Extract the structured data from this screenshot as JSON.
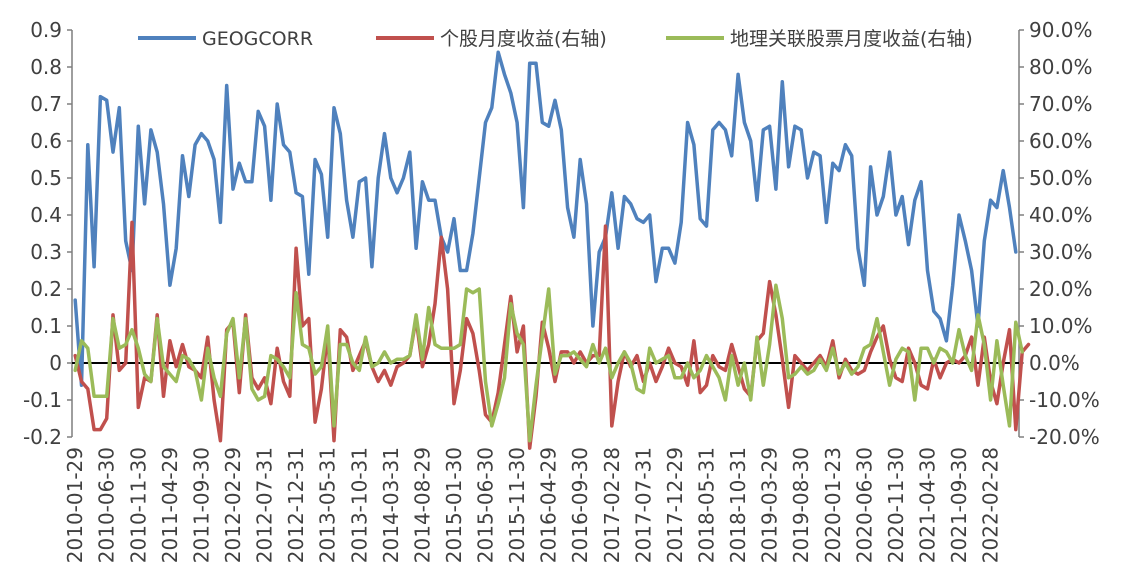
{
  "chart_data": {
    "type": "line",
    "title": "",
    "legend": {
      "placement": "top",
      "entries": [
        "GEOGCORR",
        "个股月度收益(右轴)",
        "地理关联股票月度收益(右轴)"
      ]
    },
    "x_tick_labels": [
      "2010-01-29",
      "2010-06-30",
      "2010-11-30",
      "2011-04-29",
      "2011-09-30",
      "2012-02-29",
      "2012-07-31",
      "2012-12-31",
      "2013-05-31",
      "2013-10-31",
      "2014-03-31",
      "2014-08-29",
      "2015-01-30",
      "2015-06-30",
      "2015-11-30",
      "2016-04-29",
      "2016-09-30",
      "2017-02-28",
      "2017-07-31",
      "2017-12-29",
      "2018-05-31",
      "2018-10-31",
      "2019-03-29",
      "2019-08-30",
      "2020-01-23",
      "2020-06-30",
      "2020-11-30",
      "2021-04-30",
      "2021-09-30",
      "2022-02-28"
    ],
    "x_start": "2010-01",
    "x_end": "2022-06",
    "y_left": {
      "ticks": [
        "0.9",
        "0.8",
        "0.7",
        "0.6",
        "0.5",
        "0.4",
        "0.3",
        "0.2",
        "0.1",
        "0",
        "-0.1",
        "-0.2"
      ],
      "range": [
        -0.2,
        0.9
      ]
    },
    "y_right": {
      "ticks": [
        "90.0%",
        "80.0%",
        "70.0%",
        "60.0%",
        "50.0%",
        "40.0%",
        "30.0%",
        "20.0%",
        "10.0%",
        "0.0%",
        "-10.0%",
        "-20.0%"
      ],
      "range": [
        -0.2,
        0.9
      ]
    },
    "series": [
      {
        "name": "GEOGCORR",
        "axis": "left",
        "color": "#4f81bd",
        "values": [
          0.17,
          -0.06,
          0.59,
          0.26,
          0.72,
          0.71,
          0.57,
          0.69,
          0.33,
          0.25,
          0.64,
          0.43,
          0.63,
          0.57,
          0.43,
          0.21,
          0.31,
          0.56,
          0.45,
          0.59,
          0.62,
          0.6,
          0.55,
          0.38,
          0.75,
          0.47,
          0.54,
          0.49,
          0.49,
          0.68,
          0.64,
          0.44,
          0.7,
          0.59,
          0.57,
          0.46,
          0.45,
          0.24,
          0.55,
          0.51,
          0.34,
          0.69,
          0.62,
          0.44,
          0.34,
          0.49,
          0.5,
          0.26,
          0.5,
          0.62,
          0.5,
          0.46,
          0.5,
          0.57,
          0.31,
          0.49,
          0.44,
          0.44,
          0.34,
          0.3,
          0.39,
          0.25,
          0.25,
          0.35,
          0.5,
          0.65,
          0.69,
          0.84,
          0.78,
          0.73,
          0.65,
          0.42,
          0.81,
          0.81,
          0.65,
          0.64,
          0.71,
          0.63,
          0.42,
          0.34,
          0.55,
          0.43,
          0.1,
          0.3,
          0.34,
          0.46,
          0.31,
          0.45,
          0.43,
          0.39,
          0.38,
          0.4,
          0.22,
          0.31,
          0.31,
          0.27,
          0.38,
          0.65,
          0.59,
          0.39,
          0.37,
          0.63,
          0.65,
          0.63,
          0.56,
          0.78,
          0.65,
          0.6,
          0.44,
          0.63,
          0.64,
          0.47,
          0.76,
          0.53,
          0.64,
          0.63,
          0.5,
          0.57,
          0.56,
          0.38,
          0.54,
          0.52,
          0.59,
          0.56,
          0.31,
          0.21,
          0.53,
          0.4,
          0.45,
          0.57,
          0.4,
          0.45,
          0.32,
          0.44,
          0.49,
          0.25,
          0.14,
          0.12,
          0.06,
          0.21,
          0.4,
          0.33,
          0.25,
          0.1,
          0.33,
          0.44,
          0.42,
          0.52,
          0.42,
          0.3
        ]
      },
      {
        "name": "个股月度收益(右轴)",
        "axis": "right",
        "color": "#c0504d",
        "values": [
          0.02,
          -0.05,
          -0.07,
          -0.18,
          -0.18,
          -0.15,
          0.13,
          -0.02,
          0.0,
          0.38,
          -0.12,
          -0.04,
          -0.05,
          0.13,
          -0.09,
          0.06,
          -0.01,
          0.05,
          -0.01,
          -0.02,
          -0.04,
          0.07,
          -0.1,
          -0.21,
          0.09,
          0.11,
          -0.08,
          0.13,
          -0.04,
          -0.07,
          -0.04,
          -0.11,
          0.04,
          -0.05,
          -0.09,
          0.31,
          0.1,
          0.12,
          -0.16,
          -0.07,
          0.08,
          -0.21,
          0.09,
          0.07,
          -0.02,
          0.02,
          0.06,
          -0.01,
          -0.05,
          -0.02,
          -0.06,
          -0.01,
          0.0,
          0.02,
          0.12,
          -0.01,
          0.05,
          0.16,
          0.34,
          0.2,
          -0.11,
          -0.02,
          0.12,
          0.08,
          -0.02,
          -0.14,
          -0.16,
          -0.08,
          0.05,
          0.18,
          0.03,
          0.1,
          -0.23,
          -0.09,
          0.11,
          0.04,
          -0.05,
          0.03,
          0.03,
          0.0,
          0.03,
          0.0,
          0.02,
          0.02,
          0.37,
          -0.17,
          -0.05,
          0.03,
          -0.01,
          0.02,
          -0.05,
          0.0,
          -0.05,
          -0.01,
          0.04,
          0.0,
          -0.01,
          -0.06,
          0.06,
          -0.08,
          -0.06,
          0.02,
          -0.01,
          -0.02,
          0.05,
          -0.01,
          -0.07,
          -0.09,
          0.06,
          0.08,
          0.22,
          0.13,
          0.01,
          -0.12,
          0.02,
          0.0,
          -0.02,
          0.0,
          0.02,
          -0.01,
          0.06,
          -0.04,
          0.01,
          -0.02,
          -0.03,
          -0.02,
          0.03,
          0.07,
          0.1,
          0.01,
          -0.04,
          -0.05,
          0.04,
          0.0,
          -0.06,
          -0.07,
          0.01,
          -0.04,
          0.0,
          0.01,
          0.0,
          0.02,
          0.07,
          -0.06,
          0.07,
          -0.05,
          -0.11,
          0.0,
          0.09,
          -0.18,
          0.03,
          0.05
        ]
      },
      {
        "name": "地理关联股票月度收益(右轴)",
        "axis": "right",
        "color": "#9bbb59",
        "values": [
          -0.02,
          0.06,
          0.04,
          -0.09,
          -0.09,
          -0.09,
          0.12,
          0.04,
          0.05,
          0.09,
          0.04,
          -0.03,
          -0.05,
          0.12,
          -0.01,
          -0.03,
          -0.05,
          0.02,
          0.01,
          -0.02,
          -0.1,
          0.04,
          -0.04,
          -0.09,
          0.08,
          0.12,
          -0.04,
          0.12,
          -0.07,
          -0.1,
          -0.09,
          0.02,
          0.01,
          -0.01,
          -0.04,
          0.19,
          0.05,
          0.04,
          -0.03,
          -0.01,
          0.1,
          -0.17,
          0.05,
          0.05,
          0.0,
          -0.02,
          0.07,
          -0.01,
          0.0,
          0.03,
          0.0,
          0.01,
          0.01,
          0.02,
          0.13,
          0.01,
          0.15,
          0.05,
          0.04,
          0.04,
          0.04,
          0.05,
          0.2,
          0.19,
          0.2,
          -0.05,
          -0.17,
          -0.11,
          -0.04,
          0.16,
          0.08,
          0.05,
          -0.21,
          -0.06,
          0.07,
          0.2,
          -0.03,
          0.02,
          0.02,
          0.03,
          0.01,
          -0.01,
          0.05,
          0.0,
          0.04,
          -0.04,
          0.0,
          0.03,
          0.0,
          -0.07,
          -0.08,
          0.04,
          0.0,
          0.01,
          0.02,
          -0.04,
          -0.04,
          0.0,
          -0.04,
          -0.02,
          0.02,
          -0.01,
          -0.04,
          -0.1,
          0.02,
          -0.06,
          0.0,
          -0.1,
          0.07,
          -0.06,
          0.05,
          0.21,
          0.12,
          -0.04,
          -0.03,
          -0.01,
          -0.03,
          -0.02,
          0.01,
          -0.02,
          0.04,
          -0.03,
          0.0,
          -0.03,
          -0.01,
          0.04,
          0.05,
          0.12,
          0.03,
          -0.06,
          0.01,
          0.04,
          0.03,
          -0.1,
          0.04,
          0.04,
          0.0,
          0.04,
          0.03,
          0.0,
          0.09,
          0.02,
          -0.02,
          0.13,
          0.05,
          -0.1,
          0.06,
          -0.06,
          -0.17,
          0.11,
          0.03
        ]
      }
    ]
  }
}
